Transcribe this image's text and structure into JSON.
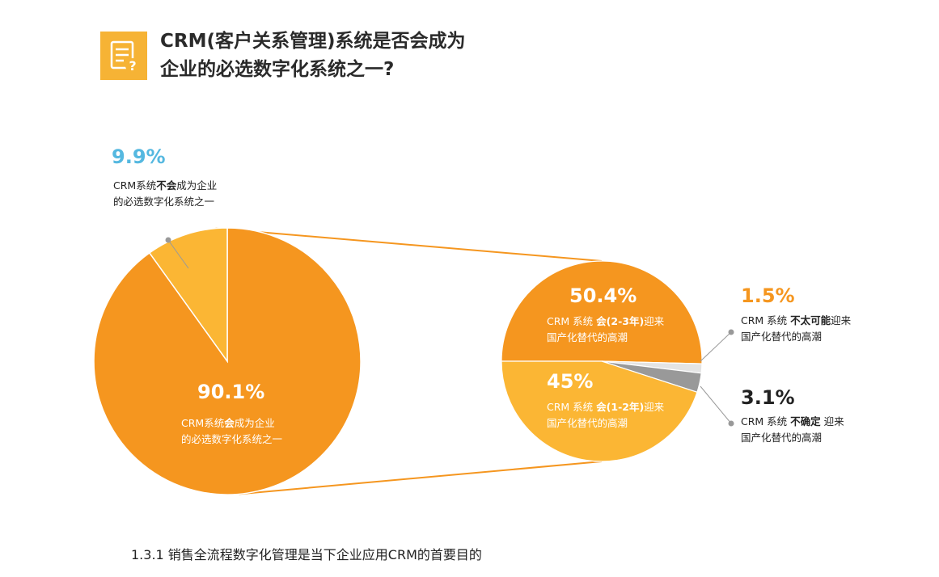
{
  "header": {
    "icon": "document-question-icon",
    "title_line1": "CRM(客户关系管理)系统是否会成为",
    "title_line2": "企业的必选数字化系统之一?"
  },
  "chart_data": [
    {
      "type": "pie",
      "slices": [
        {
          "value": 90.1,
          "label": "90.1%",
          "color": "#f5961f",
          "desc_line1_pre": "CRM系统",
          "desc_line1_bold": "会",
          "desc_line1_post": "成为企业",
          "desc_line2": "的必选数字化系统之一"
        },
        {
          "value": 9.9,
          "label": "9.9%",
          "color": "#fbb634",
          "label_color": "#55b8e0",
          "desc_line1_pre": "CRM系统",
          "desc_line1_bold": "不会",
          "desc_line1_post": "成为企业",
          "desc_line2": "的必选数字化系统之一"
        }
      ]
    },
    {
      "type": "pie",
      "slices": [
        {
          "value": 50.4,
          "label": "50.4%",
          "color": "#f5961f",
          "desc_line1_pre": "CRM 系统",
          "desc_line1_bold": "会(2-3年)",
          "desc_line1_post": "迎来",
          "desc_line2": "国产化替代的高潮"
        },
        {
          "value": 1.5,
          "label": "1.5%",
          "color": "#f5961f",
          "label_color": "#f5961f",
          "desc_line1_pre": "CRM 系统",
          "desc_line1_bold": "不太可能",
          "desc_line1_post": "迎来",
          "desc_line2": "国产化替代的高潮"
        },
        {
          "value": 3.1,
          "label": "3.1%",
          "color": "#999999",
          "label_color": "#222222",
          "desc_line1_pre": "CRM 系统",
          "desc_line1_bold": "不确定",
          "desc_line1_post": " 迎来",
          "desc_line2": "国产化替代的高潮"
        },
        {
          "value": 45,
          "label": "45%",
          "color": "#fbb634",
          "desc_line1_pre": "CRM 系统",
          "desc_line1_bold": "会(1-2年)",
          "desc_line1_post": "迎来",
          "desc_line2": "国产化替代的高潮"
        }
      ]
    }
  ],
  "colors": {
    "connector": "#f5961f",
    "callout_line": "#999999",
    "light_slice": "#e4e4e4"
  },
  "footer": {
    "subheading": "1.3.1 销售全流程数字化管理是当下企业应用CRM的首要目的"
  }
}
